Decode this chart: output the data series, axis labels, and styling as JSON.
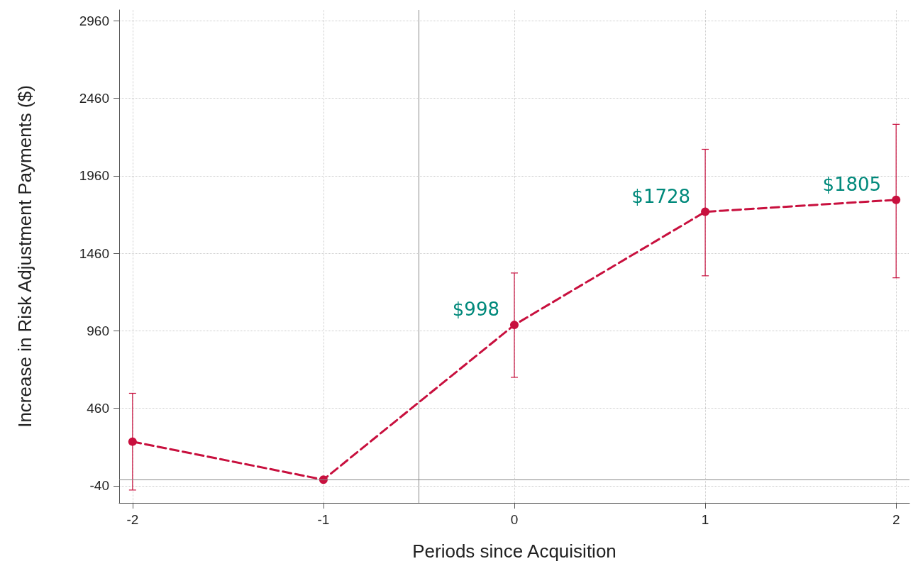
{
  "chart_data": {
    "type": "line",
    "xlabel": "Periods since Acquisition",
    "ylabel": "Increase in Risk Adjustment Payments ($)",
    "x": [
      -2,
      -1,
      0,
      1,
      2
    ],
    "series": [
      {
        "color": "#c8103e",
        "values": [
          245,
          0,
          998,
          1728,
          1805
        ],
        "errors": [
          [
            -67,
            557
          ],
          null,
          [
            660,
            1333
          ],
          [
            1315,
            2131
          ],
          [
            1302,
            2292
          ]
        ],
        "value_labels": [
          null,
          null,
          "$998",
          "$1728",
          "$1805"
        ]
      }
    ],
    "xlim": [
      -2.07,
      2.07
    ],
    "xticks": [
      -2,
      -1,
      0,
      1,
      2
    ],
    "ylim": [
      -150,
      3030
    ],
    "yticks": [
      -40,
      460,
      960,
      1460,
      1960,
      2460,
      2960
    ],
    "ref_lines": [
      {
        "axis": "x",
        "value": -0.5,
        "color": "#888888"
      },
      {
        "axis": "y",
        "value": 0,
        "color": "#888888"
      }
    ],
    "grid": true,
    "marker": "circle",
    "line_style": "dashed"
  }
}
